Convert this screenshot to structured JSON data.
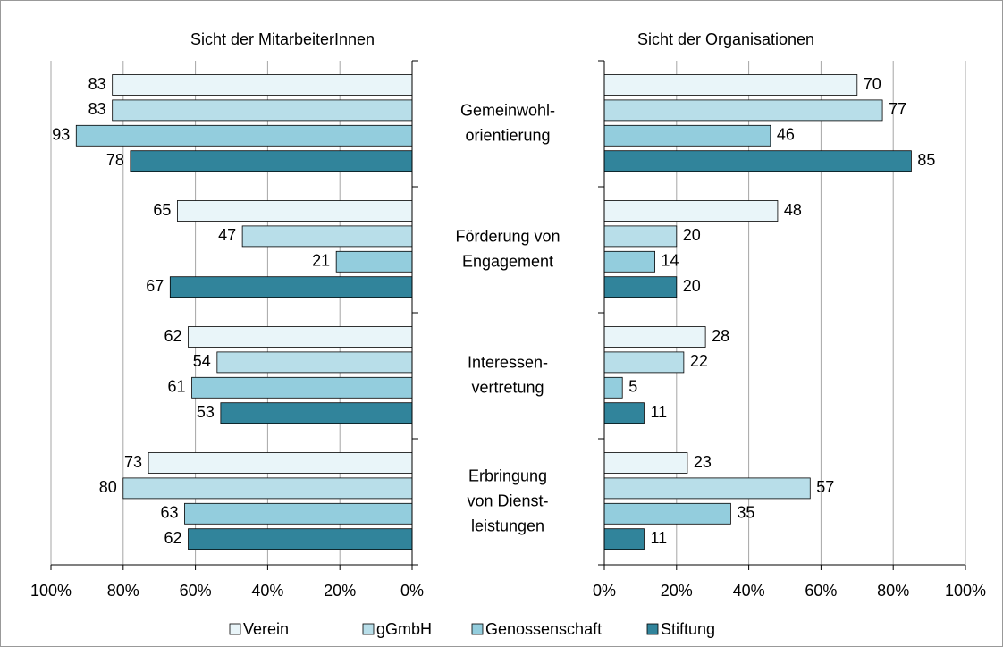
{
  "chart_data": [
    {
      "type": "bar",
      "orientation": "horizontal",
      "x_reversed": true,
      "title": "Sicht der MitarbeiterInnen",
      "categories": [
        "Gemeinwohl-\norientierung",
        "Förderung von\nEngagement",
        "Interessen-\nvertretung",
        "Erbringung\nvon Dienst-\nleistungen"
      ],
      "series": [
        {
          "name": "Verein",
          "color": "#e9f5f9",
          "values": [
            83,
            65,
            62,
            73
          ]
        },
        {
          "name": "gGmbH",
          "color": "#b8dee9",
          "values": [
            83,
            47,
            54,
            80
          ]
        },
        {
          "name": "Genossenschaft",
          "color": "#93cddd",
          "values": [
            93,
            21,
            61,
            63
          ]
        },
        {
          "name": "Stiftung",
          "color": "#31849b",
          "values": [
            78,
            67,
            53,
            62
          ]
        }
      ],
      "xlim": [
        0,
        100
      ],
      "xticks": [
        {
          "value": 0,
          "label": "0%"
        },
        {
          "value": 20,
          "label": "20%"
        },
        {
          "value": 40,
          "label": "40%"
        },
        {
          "value": 60,
          "label": "60%"
        },
        {
          "value": 80,
          "label": "80%"
        },
        {
          "value": 100,
          "label": "100%"
        }
      ],
      "grid": true,
      "legend": "bottom"
    },
    {
      "type": "bar",
      "orientation": "horizontal",
      "x_reversed": false,
      "title": "Sicht der Organisationen",
      "series": [
        {
          "color": "#e9f5f9",
          "values": [
            70,
            48,
            28,
            23
          ]
        },
        {
          "color": "#b8dee9",
          "values": [
            77,
            20,
            22,
            57
          ]
        },
        {
          "color": "#93cddd",
          "values": [
            46,
            14,
            5,
            35
          ]
        },
        {
          "color": "#31849b",
          "values": [
            85,
            20,
            11,
            11
          ]
        }
      ],
      "xlim": [
        0,
        100
      ],
      "xticks": [
        {
          "value": 0,
          "label": "0%"
        },
        {
          "value": 20,
          "label": "20%"
        },
        {
          "value": 40,
          "label": "40%"
        },
        {
          "value": 60,
          "label": "60%"
        },
        {
          "value": 80,
          "label": "80%"
        },
        {
          "value": 100,
          "label": "100%"
        }
      ],
      "grid": true
    }
  ]
}
